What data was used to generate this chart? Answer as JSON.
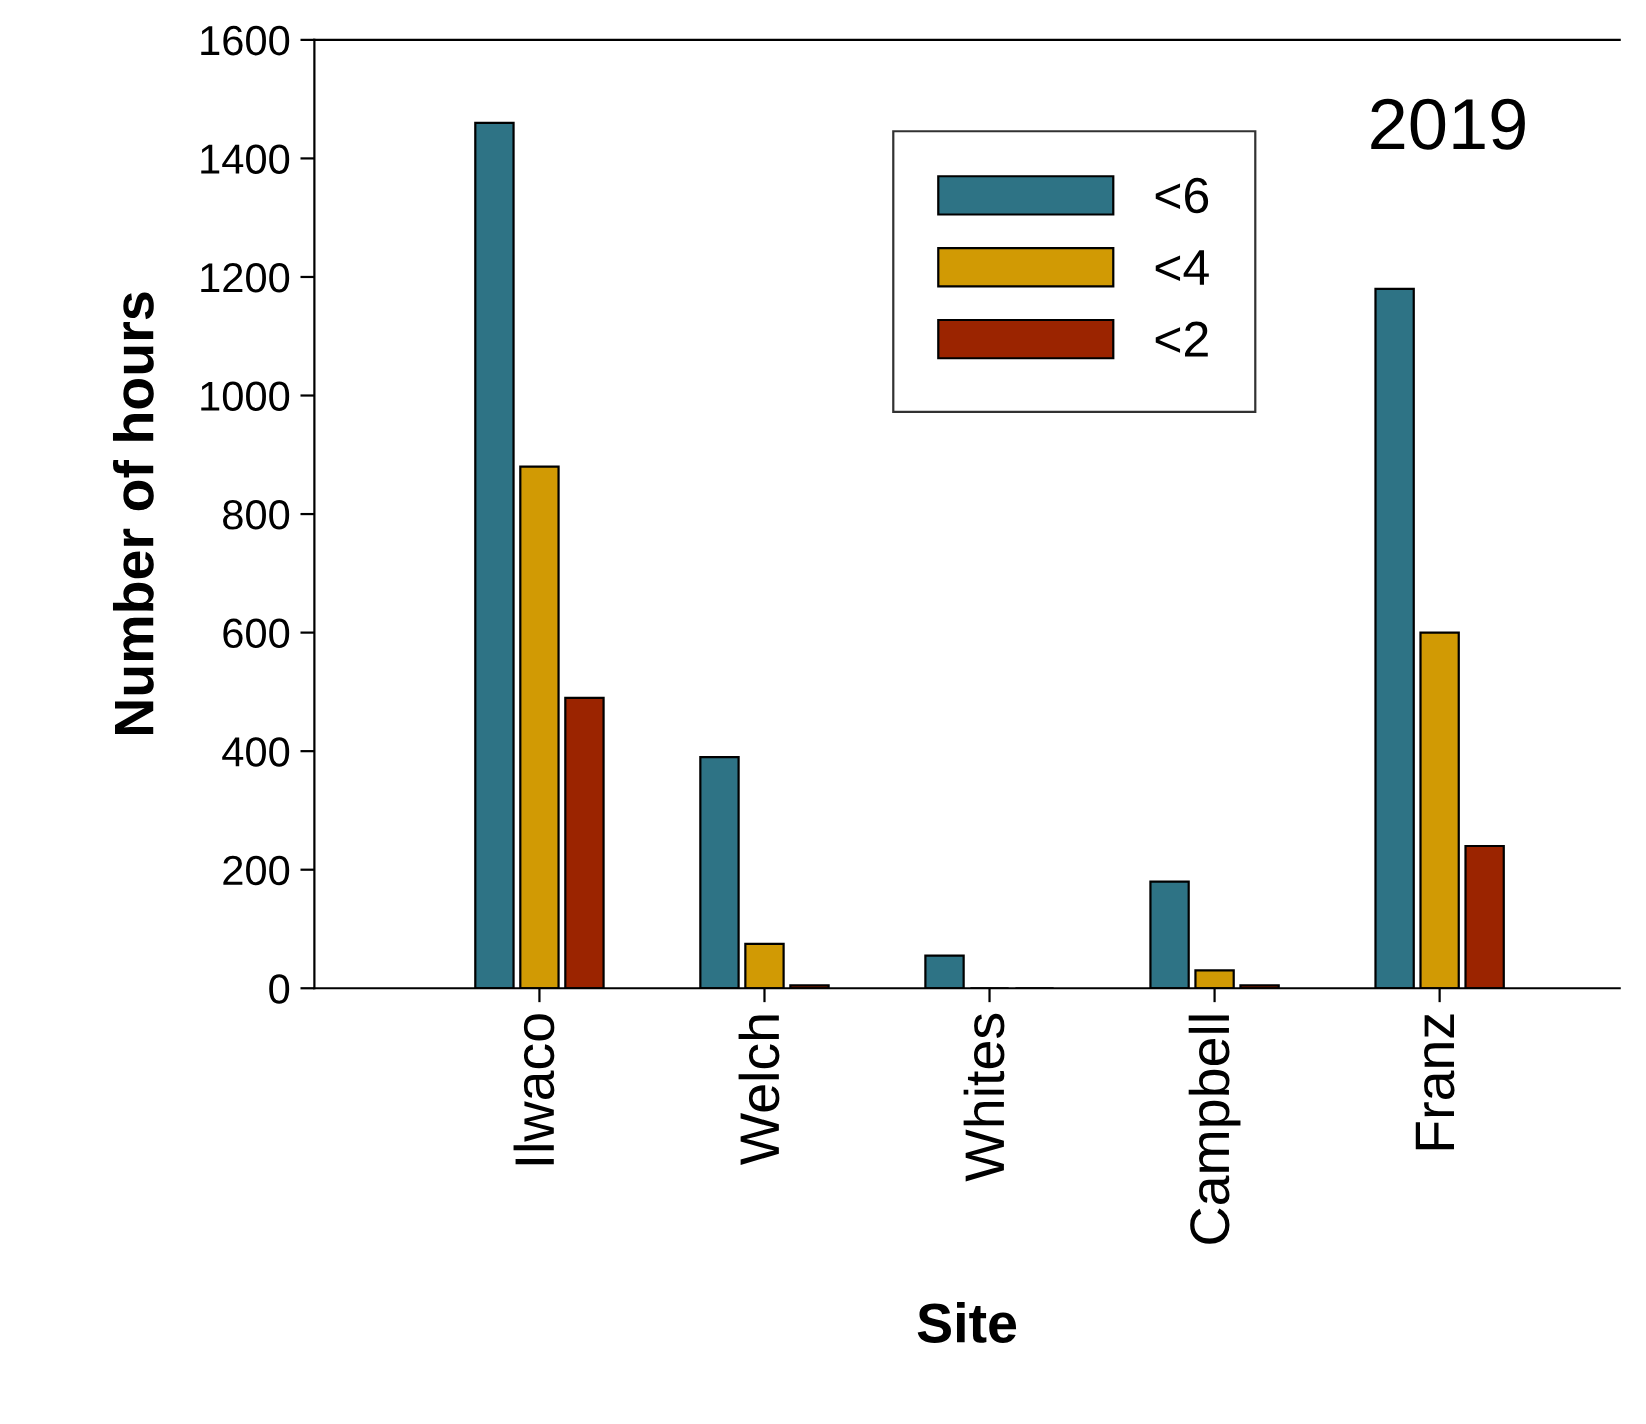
{
  "chart_data": {
    "type": "bar",
    "xlabel": "Site",
    "ylabel": "Number of hours",
    "annotations": [
      "2019"
    ],
    "categories": [
      "Ilwaco",
      "Welch",
      "Whites",
      "Campbell",
      "Franz"
    ],
    "series": [
      {
        "name": "<6",
        "color": "#2e7385",
        "values": [
          1460,
          390,
          55,
          180,
          1180
        ]
      },
      {
        "name": "<4",
        "color": "#d19a04",
        "values": [
          880,
          75,
          0,
          30,
          600
        ]
      },
      {
        "name": "<2",
        "color": "#9b2400",
        "values": [
          490,
          5,
          0,
          5,
          240
        ]
      }
    ],
    "ylim": [
      0,
      1600
    ],
    "yticks": [
      0,
      200,
      400,
      600,
      800,
      1000,
      1200,
      1400,
      1600
    ],
    "grid": false,
    "legend": "top right"
  }
}
